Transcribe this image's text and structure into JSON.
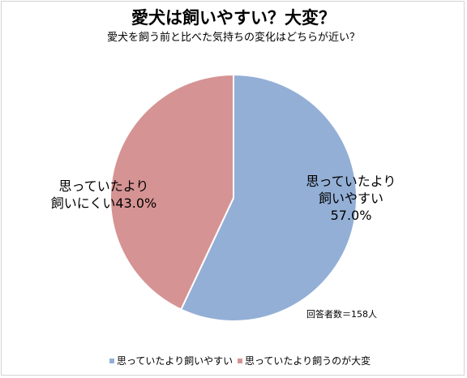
{
  "chart_data": {
    "type": "pie",
    "title": "愛犬は飼いやすい？大変？",
    "subtitle": "愛犬を飼う前と比べた気持ちの変化はどちらが近い？",
    "slices": [
      {
        "legend": "思っていたより飼いやすい",
        "label_lines": [
          "思っていたより",
          "飼いやすい",
          "57.0%"
        ],
        "value": 57.0,
        "color": "#93afd6"
      },
      {
        "legend": "思っていたより飼うのが大変",
        "label_lines": [
          "思っていたより",
          "飼いにくい43.0%"
        ],
        "value": 43.0,
        "color": "#d69393"
      }
    ],
    "note": "回答者数＝158人",
    "start_angle_deg": 0,
    "legend_position": "bottom"
  }
}
